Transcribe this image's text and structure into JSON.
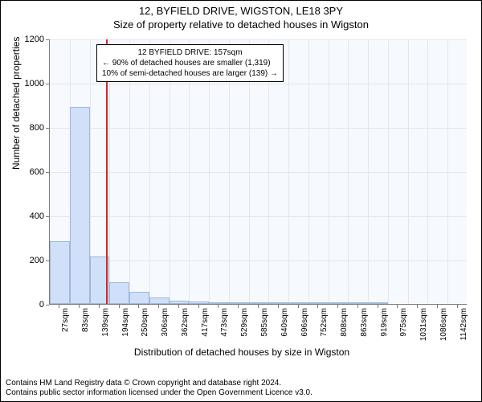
{
  "title_line1": "12, BYFIELD DRIVE, WIGSTON, LE18 3PY",
  "title_line2": "Size of property relative to detached houses in Wigston",
  "chart": {
    "type": "histogram",
    "background_color": "#f6f9fd",
    "grid_color": "#e3e6ea",
    "axis_color": "#7a7a7a",
    "bar_fill": "#cfe0f8",
    "bar_border": "#9fb8d8",
    "marker_color": "#d62728",
    "ylabel": "Number of detached properties",
    "xlabel": "Distribution of detached houses by size in Wigston",
    "ylim": [
      0,
      1200
    ],
    "ytick_step": 200,
    "yticks": [
      0,
      200,
      400,
      600,
      800,
      1000,
      1200
    ],
    "x_categories": [
      "27sqm",
      "83sqm",
      "139sqm",
      "194sqm",
      "250sqm",
      "306sqm",
      "362sqm",
      "417sqm",
      "473sqm",
      "529sqm",
      "585sqm",
      "640sqm",
      "696sqm",
      "752sqm",
      "808sqm",
      "863sqm",
      "919sqm",
      "975sqm",
      "1031sqm",
      "1086sqm",
      "1142sqm"
    ],
    "bar_values": [
      285,
      890,
      215,
      98,
      55,
      28,
      15,
      10,
      8,
      5,
      3,
      2,
      2,
      1,
      1,
      1,
      1,
      0,
      0,
      0,
      0
    ],
    "marker_x_sqm": 157,
    "x_min_sqm": 0,
    "x_bin_width_sqm": 55.75,
    "callout": {
      "line1": "12 BYFIELD DRIVE: 157sqm",
      "line2": "← 90% of detached houses are smaller (1,319)",
      "line3": "10% of semi-detached houses are larger (139) →"
    },
    "title_fontsize": 13,
    "label_fontsize": 12,
    "tick_fontsize": 11,
    "xtick_fontsize": 10,
    "callout_fontsize": 10
  },
  "footer": {
    "line1": "Contains HM Land Registry data © Crown copyright and database right 2024.",
    "line2": "Contains public sector information licensed under the Open Government Licence v3.0."
  }
}
